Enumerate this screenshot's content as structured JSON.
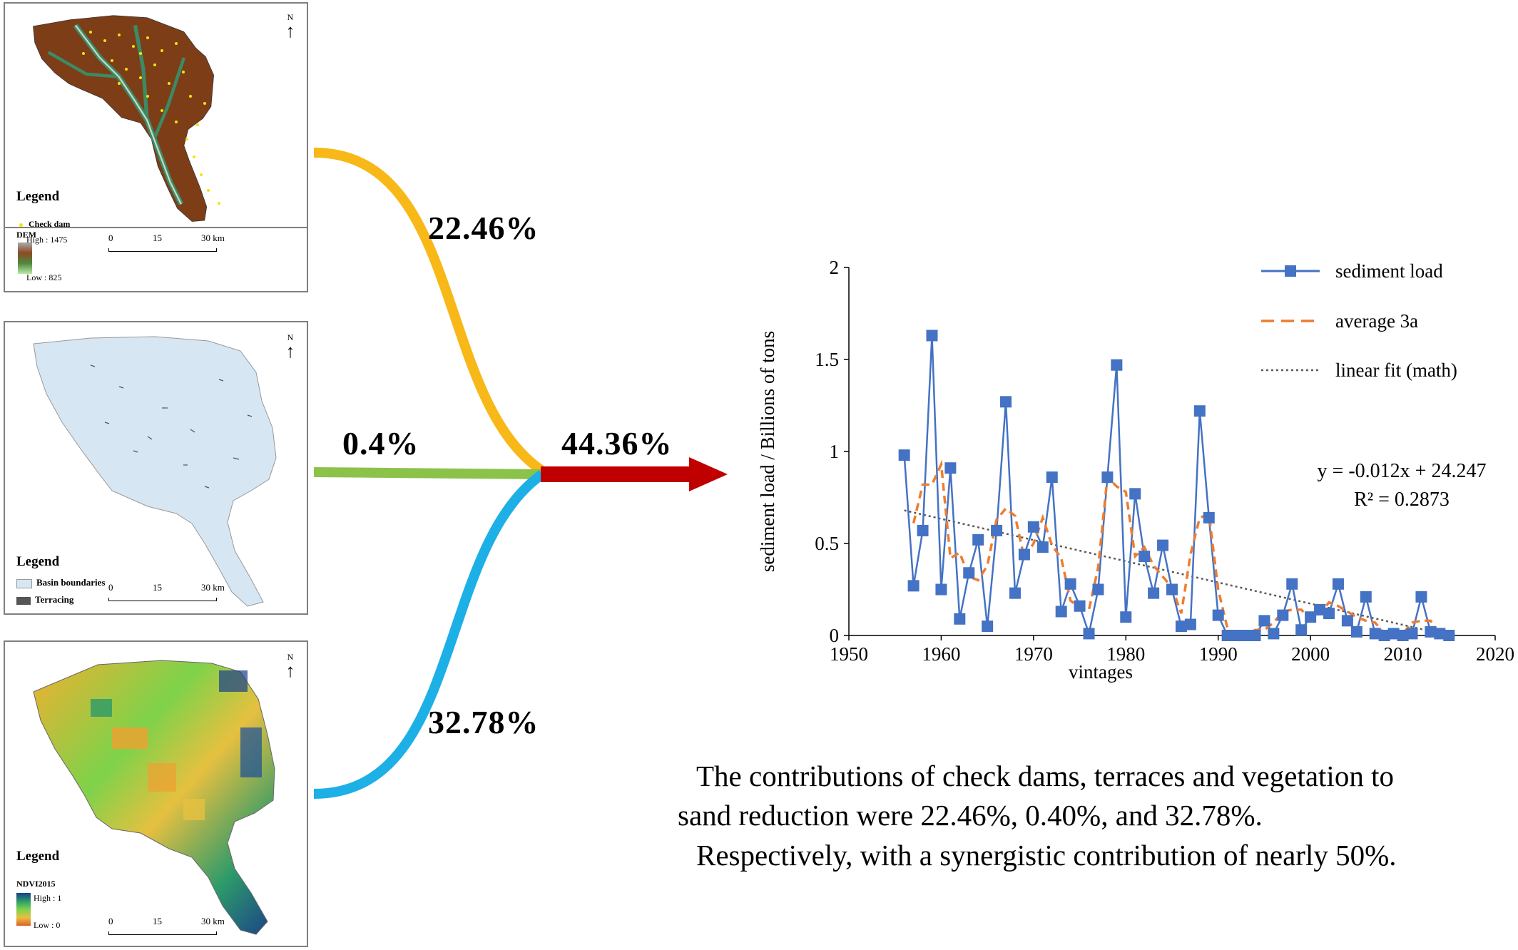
{
  "maps": [
    {
      "legend_title": "Legend",
      "items": [
        "Check dam"
      ],
      "raster_title": "DEM",
      "high_label": "High : 1475",
      "low_label": "Low : 825",
      "scale_labels": [
        "0",
        "15",
        "30 km"
      ],
      "north": "N",
      "colors": {
        "check_dam": "#f2e600"
      }
    },
    {
      "legend_title": "Legend",
      "items": [
        "Basin boundaries",
        "Terracing"
      ],
      "scale_labels": [
        "0",
        "15",
        "30 km"
      ],
      "north": "N",
      "colors": {
        "basin": "#d6e6f3",
        "terracing": "#555555"
      }
    },
    {
      "legend_title": "Legend",
      "raster_title": "NDVI2015",
      "high_label": "High : 1",
      "low_label": "Low : 0",
      "scale_labels": [
        "0",
        "15",
        "30 km"
      ],
      "north": "N"
    }
  ],
  "flows": {
    "check_dam_pct": "22.46%",
    "terrace_pct": "0.4%",
    "vegetation_pct": "32.78%",
    "synergy_pct": "44.36%",
    "colors": {
      "check_dam": "#f7b818",
      "terrace": "#8bc34a",
      "vegetation": "#1cb0e6",
      "synergy": "#c00000"
    }
  },
  "caption": {
    "line1": "The contributions of check dams, terraces and vegetation to",
    "line2": "sand reduction were 22.46%, 0.40%, and 32.78%.",
    "line3": "Respectively, with a synergistic contribution of nearly 50%."
  },
  "chart_data": {
    "type": "line",
    "xlabel": "vintages",
    "ylabel": "sediment load / Billions of tons",
    "xlim": [
      1950,
      2020
    ],
    "ylim": [
      0,
      2
    ],
    "xticks": [
      "1950",
      "1960",
      "1970",
      "1980",
      "1990",
      "2000",
      "2010",
      "2020"
    ],
    "yticks": [
      "0",
      "0.5",
      "1",
      "1.5",
      "2"
    ],
    "legend_placement": "top-right",
    "x": [
      1956,
      1957,
      1958,
      1959,
      1960,
      1961,
      1962,
      1963,
      1964,
      1965,
      1966,
      1967,
      1968,
      1969,
      1970,
      1971,
      1972,
      1973,
      1974,
      1975,
      1976,
      1977,
      1978,
      1979,
      1980,
      1981,
      1982,
      1983,
      1984,
      1985,
      1986,
      1987,
      1988,
      1989,
      1990,
      1991,
      1992,
      1993,
      1994,
      1995,
      1996,
      1997,
      1998,
      1999,
      2000,
      2001,
      2002,
      2003,
      2004,
      2005,
      2006,
      2007,
      2008,
      2009,
      2010,
      2011,
      2012,
      2013,
      2014,
      2015
    ],
    "series": [
      {
        "name": "sediment load",
        "style": "solid-square-marker",
        "color": "#4472c4",
        "values": [
          0.98,
          0.27,
          0.57,
          1.63,
          0.25,
          0.91,
          0.09,
          0.34,
          0.52,
          0.05,
          0.57,
          1.27,
          0.23,
          0.44,
          0.59,
          0.48,
          0.86,
          0.13,
          0.28,
          0.16,
          0.01,
          0.25,
          0.86,
          1.47,
          0.1,
          0.77,
          0.43,
          0.23,
          0.49,
          0.25,
          0.05,
          0.06,
          1.22,
          0.64,
          0.11,
          0.0,
          0.0,
          0.0,
          0.0,
          0.08,
          0.01,
          0.11,
          0.28,
          0.03,
          0.1,
          0.14,
          0.12,
          0.28,
          0.08,
          0.02,
          0.21,
          0.01,
          0.0,
          0.01,
          0.0,
          0.01,
          0.21,
          0.02,
          0.01,
          0.0
        ]
      },
      {
        "name": "average 3a",
        "style": "dashed",
        "color": "#ed7d31",
        "x": [
          1957,
          1958,
          1959,
          1960,
          1961,
          1962,
          1963,
          1964,
          1965,
          1966,
          1967,
          1968,
          1969,
          1970,
          1971,
          1972,
          1973,
          1974,
          1975,
          1976,
          1977,
          1978,
          1979,
          1980,
          1981,
          1982,
          1983,
          1984,
          1985,
          1986,
          1987,
          1988,
          1989,
          1990,
          1991,
          1992,
          1993,
          1994,
          1995,
          1996,
          1997,
          1998,
          1999,
          2000,
          2001,
          2002,
          2003,
          2004,
          2005,
          2006,
          2007,
          2008,
          2009,
          2010,
          2011,
          2012,
          2013,
          2014
        ],
        "values": [
          0.61,
          0.82,
          0.82,
          0.93,
          0.42,
          0.45,
          0.32,
          0.3,
          0.38,
          0.63,
          0.69,
          0.65,
          0.42,
          0.5,
          0.64,
          0.49,
          0.42,
          0.19,
          0.15,
          0.14,
          0.37,
          0.86,
          0.81,
          0.78,
          0.43,
          0.48,
          0.38,
          0.32,
          0.26,
          0.12,
          0.44,
          0.64,
          0.66,
          0.25,
          0.04,
          0.0,
          0.0,
          0.03,
          0.03,
          0.07,
          0.13,
          0.14,
          0.14,
          0.09,
          0.12,
          0.18,
          0.16,
          0.13,
          0.1,
          0.08,
          0.07,
          0.01,
          0.0,
          0.01,
          0.07,
          0.08,
          0.08,
          0.01
        ]
      },
      {
        "name": "linear fit (math)",
        "style": "dotted",
        "color": "#595959",
        "x": [
          1956,
          2015
        ],
        "values": [
          0.68,
          0.0
        ]
      }
    ],
    "equation": "y = -0.012x + 24.247",
    "r2": "R² = 0.2873"
  }
}
